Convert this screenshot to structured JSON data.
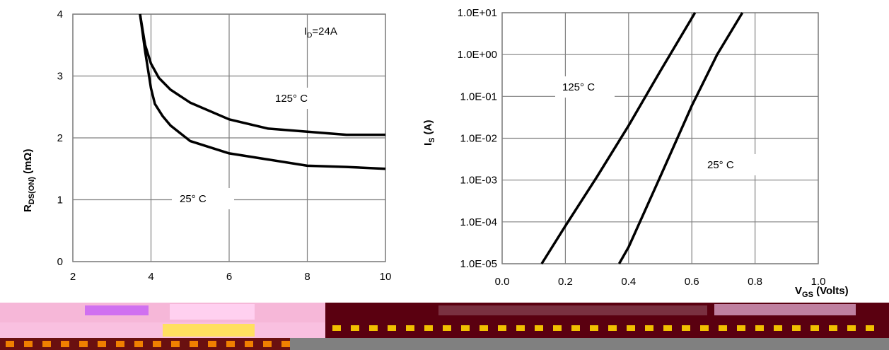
{
  "chart_data": [
    {
      "type": "line",
      "title": "",
      "xlabel": "",
      "ylabel_main": "R",
      "ylabel_sub": "DS(ON)",
      "ylabel_unit": " (mΩ)",
      "xlim": [
        2,
        10
      ],
      "ylim": [
        0,
        4
      ],
      "xticks": [
        2,
        4,
        6,
        8,
        10
      ],
      "yticks": [
        0,
        1,
        2,
        3,
        4
      ],
      "grid": true,
      "annotation_main": "I",
      "annotation_sub": "D",
      "annotation_rest": "=24A",
      "series": [
        {
          "name": "125° C",
          "x": [
            3.72,
            3.85,
            4.0,
            4.2,
            4.5,
            5.0,
            6.0,
            7.0,
            8.0,
            9.0,
            10.0
          ],
          "y": [
            4.0,
            3.5,
            3.2,
            2.97,
            2.78,
            2.57,
            2.3,
            2.15,
            2.1,
            2.05,
            2.05
          ]
        },
        {
          "name": "25° C",
          "x": [
            3.72,
            3.85,
            4.0,
            4.1,
            4.3,
            4.5,
            5.0,
            6.0,
            7.0,
            8.0,
            9.0,
            10.0
          ],
          "y": [
            4.0,
            3.4,
            2.8,
            2.55,
            2.35,
            2.2,
            1.95,
            1.75,
            1.65,
            1.55,
            1.53,
            1.5
          ]
        }
      ]
    },
    {
      "type": "line",
      "title": "",
      "xlabel_main": "V",
      "xlabel_sub": "GS",
      "xlabel_unit": " (Volts)",
      "ylabel_main": "I",
      "ylabel_sub": "S",
      "ylabel_unit": " (A)",
      "xlim": [
        0.0,
        1.0
      ],
      "ylim": [
        -5,
        1
      ],
      "yscale": "log",
      "xticks": [
        "0.0",
        "0.2",
        "0.4",
        "0.6",
        "0.8",
        "1.0"
      ],
      "yticks": [
        "1.0E+01",
        "1.0E+00",
        "1.0E-01",
        "1.0E-02",
        "1.0E-03",
        "1.0E-04",
        "1.0E-05"
      ],
      "grid": true,
      "series": [
        {
          "name": "125° C",
          "x": [
            0.125,
            0.2,
            0.3,
            0.4,
            0.5,
            0.61
          ],
          "y": [
            1e-05,
            8e-05,
            0.0012,
            0.02,
            0.4,
            10
          ]
        },
        {
          "name": "25° C",
          "x": [
            0.37,
            0.4,
            0.5,
            0.6,
            0.68,
            0.76
          ],
          "y": [
            1e-05,
            2.5e-05,
            0.0012,
            0.06,
            1.0,
            10
          ]
        }
      ]
    }
  ],
  "labels": {
    "left_125": "125° C",
    "left_25": "25° C",
    "right_125": "125° C",
    "right_25": "25° C"
  },
  "colors": {
    "line": "#000000",
    "grid": "#808080"
  }
}
